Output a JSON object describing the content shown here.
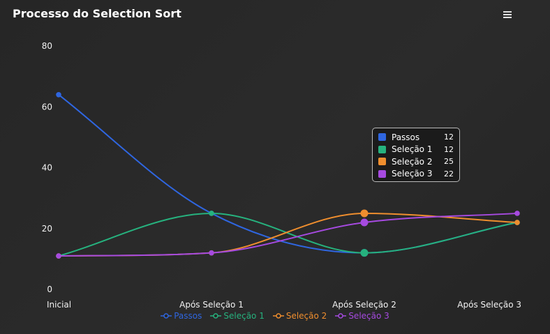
{
  "title": "Processo do Selection Sort",
  "menu_icon": "hamburger-menu-icon",
  "chart_data": {
    "type": "line",
    "title": "Processo do Selection Sort",
    "categories": [
      "Inicial",
      "Após Seleção 1",
      "Após Seleção 2",
      "Após Seleção 3"
    ],
    "ylim": [
      0,
      80
    ],
    "yticks": [
      "0",
      "20",
      "40",
      "60",
      "80"
    ],
    "grid": false,
    "legend_position": "bottom",
    "series": [
      {
        "name": "Passos",
        "color": "#2f66e0",
        "values": [
          64,
          25,
          12,
          22
        ]
      },
      {
        "name": "Seleção 1",
        "color": "#26b27e",
        "values": [
          11,
          25,
          12,
          22
        ]
      },
      {
        "name": "Seleção 2",
        "color": "#ef8e2e",
        "values": [
          11,
          12,
          25,
          22
        ]
      },
      {
        "name": "Seleção 3",
        "color": "#a64ae0",
        "values": [
          11,
          12,
          22,
          25
        ]
      }
    ]
  },
  "tooltip": {
    "category": "Após Seleção 2",
    "rows": [
      {
        "name": "Passos",
        "value": "12",
        "color": "#2f66e0"
      },
      {
        "name": "Seleção 1",
        "value": "12",
        "color": "#26b27e"
      },
      {
        "name": "Seleção 2",
        "value": "25",
        "color": "#ef8e2e"
      },
      {
        "name": "Seleção 3",
        "value": "22",
        "color": "#a64ae0"
      }
    ]
  },
  "legend": [
    {
      "name": "Passos",
      "color": "#2f66e0"
    },
    {
      "name": "Seleção 1",
      "color": "#26b27e"
    },
    {
      "name": "Seleção 2",
      "color": "#ef8e2e"
    },
    {
      "name": "Seleção 3",
      "color": "#a64ae0"
    }
  ]
}
